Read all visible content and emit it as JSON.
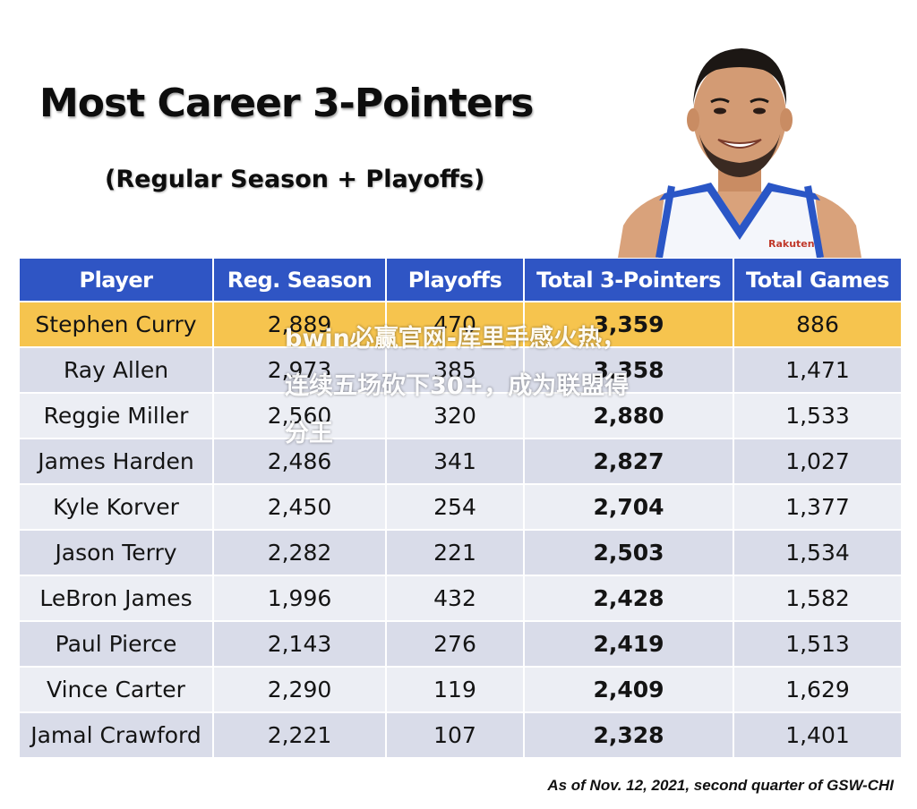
{
  "title": "Most Career 3-Pointers",
  "subtitle": "(Regular Season + Playoffs)",
  "footnote": "As of Nov. 12, 2021, second quarter of GSW-CHI",
  "watermark": "bwin必赢官网-库里手感火热，连续五场砍下30+，成为联盟得分王",
  "jersey_text": "Rakuten",
  "colors": {
    "header": "#2f55c4",
    "highlight": "#f6c44e",
    "row_odd": "#d9dce9",
    "row_even": "#eceef4"
  },
  "chart_data": {
    "type": "table",
    "title": "Most Career 3-Pointers",
    "subtitle": "(Regular Season + Playoffs)",
    "columns": [
      "Player",
      "Reg. Season",
      "Playoffs",
      "Total 3-Pointers",
      "Total Games"
    ],
    "rows": [
      [
        "Stephen Curry",
        "2,889",
        "470",
        "3,359",
        "886"
      ],
      [
        "Ray Allen",
        "2,973",
        "385",
        "3,358",
        "1,471"
      ],
      [
        "Reggie Miller",
        "2,560",
        "320",
        "2,880",
        "1,533"
      ],
      [
        "James Harden",
        "2,486",
        "341",
        "2,827",
        "1,027"
      ],
      [
        "Kyle Korver",
        "2,450",
        "254",
        "2,704",
        "1,377"
      ],
      [
        "Jason Terry",
        "2,282",
        "221",
        "2,503",
        "1,534"
      ],
      [
        "LeBron James",
        "1,996",
        "432",
        "2,428",
        "1,582"
      ],
      [
        "Paul Pierce",
        "2,143",
        "276",
        "2,419",
        "1,513"
      ],
      [
        "Vince Carter",
        "2,290",
        "119",
        "2,409",
        "1,629"
      ],
      [
        "Jamal Crawford",
        "2,221",
        "107",
        "2,328",
        "1,401"
      ]
    ],
    "highlighted_row": 0
  }
}
